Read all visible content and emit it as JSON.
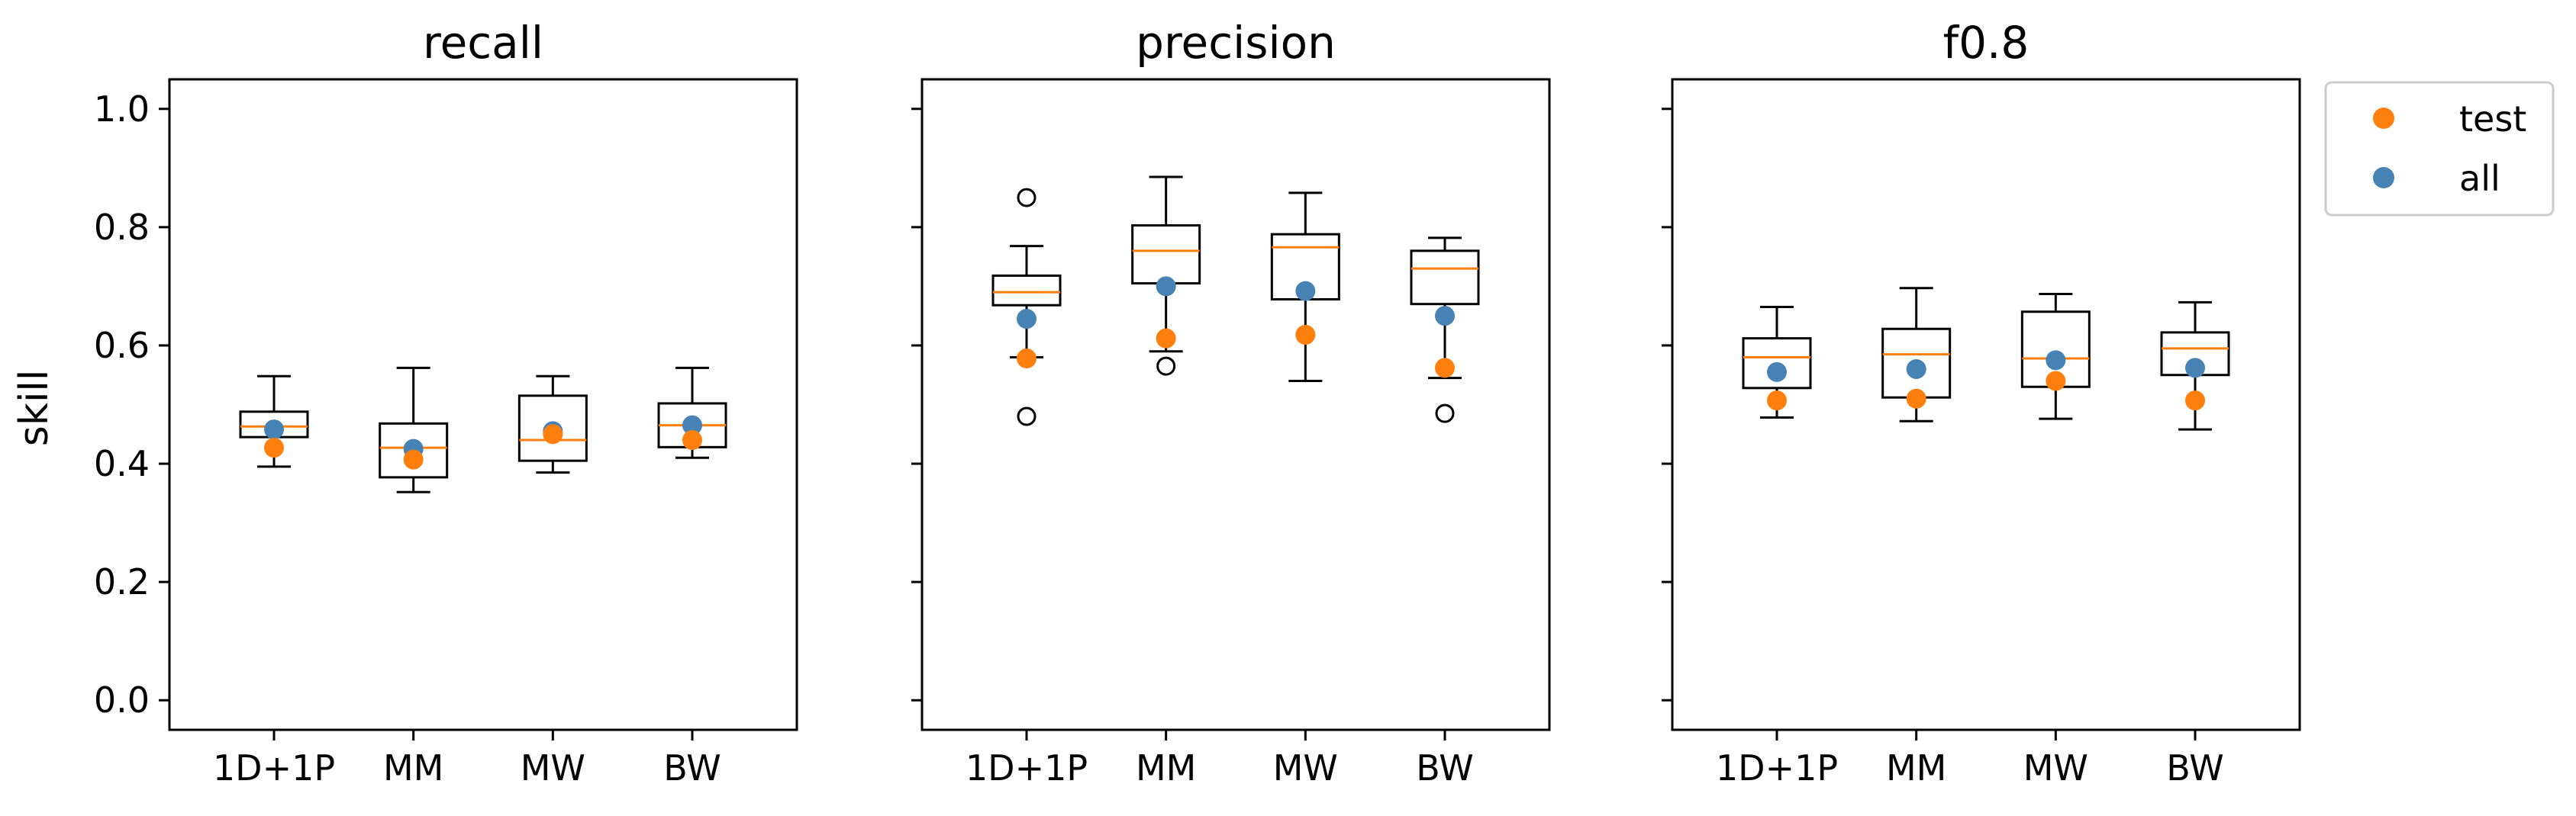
{
  "chart_data": {
    "type": "box",
    "ylabel": "skill",
    "ylim": [
      -0.05,
      1.05
    ],
    "yticks": [
      0.0,
      0.2,
      0.4,
      0.6,
      0.8,
      1.0
    ],
    "ytick_labels": [
      "0.0",
      "0.2",
      "0.4",
      "0.6",
      "0.8",
      "1.0"
    ],
    "categories": [
      "1D+1P",
      "MM",
      "MW",
      "BW"
    ],
    "legend": {
      "placement": "outside-right-top",
      "entries": [
        {
          "name": "test",
          "color": "#ff7f0e"
        },
        {
          "name": "all",
          "color": "#4682b4"
        }
      ]
    },
    "colors": {
      "box": "#000000",
      "median": "#ff7f0e",
      "test": "#ff7f0e",
      "all": "#4682b4"
    },
    "panels": [
      {
        "title": "recall",
        "boxes": [
          {
            "category": "1D+1P",
            "whisker_low": 0.395,
            "q1": 0.445,
            "median": 0.463,
            "q3": 0.488,
            "whisker_high": 0.548,
            "outliers": [],
            "test": 0.427,
            "all": 0.458
          },
          {
            "category": "MM",
            "whisker_low": 0.352,
            "q1": 0.377,
            "median": 0.427,
            "q3": 0.468,
            "whisker_high": 0.562,
            "outliers": [],
            "test": 0.407,
            "all": 0.425
          },
          {
            "category": "MW",
            "whisker_low": 0.385,
            "q1": 0.405,
            "median": 0.44,
            "q3": 0.515,
            "whisker_high": 0.548,
            "outliers": [],
            "test": 0.45,
            "all": 0.455
          },
          {
            "category": "BW",
            "whisker_low": 0.41,
            "q1": 0.428,
            "median": 0.465,
            "q3": 0.502,
            "whisker_high": 0.562,
            "outliers": [],
            "test": 0.44,
            "all": 0.465
          }
        ]
      },
      {
        "title": "precision",
        "boxes": [
          {
            "category": "1D+1P",
            "whisker_low": 0.58,
            "q1": 0.668,
            "median": 0.69,
            "q3": 0.718,
            "whisker_high": 0.768,
            "outliers": [
              0.85,
              0.578,
              0.48
            ],
            "test": 0.578,
            "all": 0.645
          },
          {
            "category": "MM",
            "whisker_low": 0.59,
            "q1": 0.705,
            "median": 0.76,
            "q3": 0.803,
            "whisker_high": 0.885,
            "outliers": [
              0.565
            ],
            "test": 0.612,
            "all": 0.7
          },
          {
            "category": "MW",
            "whisker_low": 0.54,
            "q1": 0.678,
            "median": 0.766,
            "q3": 0.788,
            "whisker_high": 0.858,
            "outliers": [],
            "test": 0.618,
            "all": 0.692
          },
          {
            "category": "BW",
            "whisker_low": 0.545,
            "q1": 0.67,
            "median": 0.73,
            "q3": 0.76,
            "whisker_high": 0.782,
            "outliers": [
              0.485
            ],
            "test": 0.562,
            "all": 0.65
          }
        ]
      },
      {
        "title": "f0.8",
        "boxes": [
          {
            "category": "1D+1P",
            "whisker_low": 0.478,
            "q1": 0.528,
            "median": 0.58,
            "q3": 0.612,
            "whisker_high": 0.665,
            "outliers": [],
            "test": 0.507,
            "all": 0.555
          },
          {
            "category": "MM",
            "whisker_low": 0.472,
            "q1": 0.512,
            "median": 0.585,
            "q3": 0.628,
            "whisker_high": 0.697,
            "outliers": [],
            "test": 0.51,
            "all": 0.56
          },
          {
            "category": "MW",
            "whisker_low": 0.476,
            "q1": 0.53,
            "median": 0.578,
            "q3": 0.657,
            "whisker_high": 0.687,
            "outliers": [],
            "test": 0.54,
            "all": 0.575
          },
          {
            "category": "BW",
            "whisker_low": 0.458,
            "q1": 0.55,
            "median": 0.595,
            "q3": 0.622,
            "whisker_high": 0.673,
            "outliers": [],
            "test": 0.507,
            "all": 0.562
          }
        ]
      }
    ]
  }
}
